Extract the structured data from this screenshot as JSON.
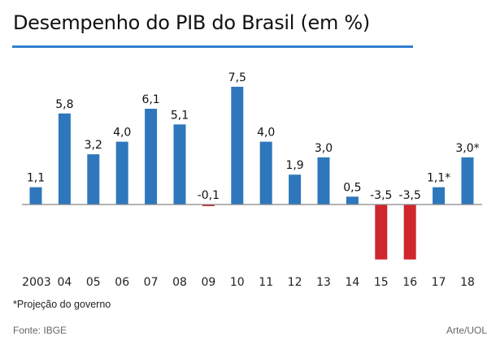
{
  "chart_data": {
    "type": "bar",
    "title": "Desempenho do PIB do Brasil (em %)",
    "xlabel": "",
    "ylabel": "",
    "categories": [
      "2003",
      "04",
      "05",
      "06",
      "07",
      "08",
      "09",
      "10",
      "11",
      "12",
      "13",
      "14",
      "15",
      "16",
      "17",
      "18"
    ],
    "values": [
      1.1,
      5.8,
      3.2,
      4.0,
      6.1,
      5.1,
      -0.1,
      7.5,
      4.0,
      1.9,
      3.0,
      0.5,
      -3.5,
      -3.5,
      1.1,
      3.0
    ],
    "data_labels": [
      "1,1",
      "5,8",
      "3,2",
      "4,0",
      "6,1",
      "5,1",
      "-0,1",
      "7,5",
      "4,0",
      "1,9",
      "3,0",
      "0,5",
      "-3,5",
      "-3,5",
      "1,1*",
      "3,0*"
    ],
    "ylim": [
      -3.5,
      7.5
    ],
    "grid": false,
    "legend": "none",
    "colors": {
      "positive": "#2e77bc",
      "negative": "#d0262e",
      "axis": "#888888",
      "accent": "#2f7fd0"
    }
  },
  "footnote": "*Projeção do governo",
  "source": "Fonte: IBGE",
  "credit": "Arte/UOL"
}
